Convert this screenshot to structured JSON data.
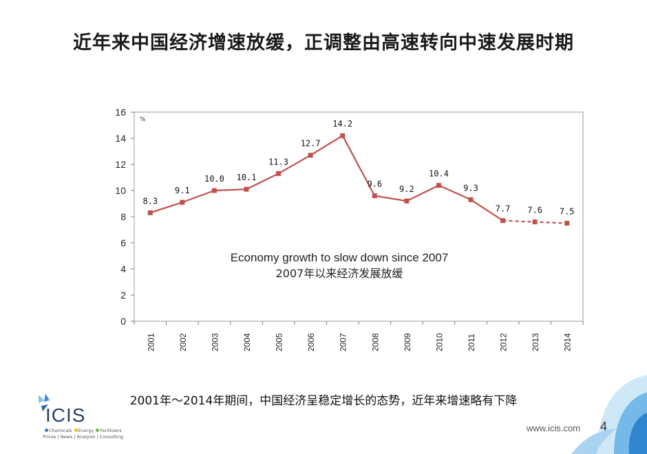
{
  "slide": {
    "title": "近年来中国经济增速放缓，正调整由高速转向中速发展时期",
    "caption": "2001年～2014年期间，中国经济呈稳定增长的态势，近年来增速略有下降",
    "website": "www.icis.com",
    "page_number": "4"
  },
  "logo": {
    "name": "ICIS",
    "tagline_line1": [
      {
        "label": "Chemicals",
        "color": "#2b7fc0"
      },
      {
        "label": "Energy",
        "color": "#f2b51c"
      },
      {
        "label": "Fertilizers",
        "color": "#6bb545"
      }
    ],
    "tagline_line2": "Prices | News | Analysis | Consulting"
  },
  "chart_data": {
    "type": "line",
    "unit_label": "%",
    "categories": [
      "2001",
      "2002",
      "2003",
      "2004",
      "2005",
      "2006",
      "2007",
      "2008",
      "2009",
      "2010",
      "2011",
      "2012",
      "2013",
      "2014"
    ],
    "values": [
      8.3,
      9.1,
      10.0,
      10.1,
      11.3,
      12.7,
      14.2,
      9.6,
      9.2,
      10.4,
      9.3,
      7.7,
      7.6,
      7.5
    ],
    "data_labels": [
      "8.3",
      "9.1",
      "10.0",
      "10.1",
      "11.3",
      "12.7",
      "14.2",
      "9.6",
      "9.2",
      "10.4",
      "9.3",
      "7.7",
      "7.6",
      "7.5"
    ],
    "dashed_from_category": "2012",
    "ylim": [
      0,
      16
    ],
    "yticks": [
      0,
      2,
      4,
      6,
      8,
      10,
      12,
      14,
      16
    ],
    "grid": false,
    "line_color": "#c0504d",
    "annotation_en": "Economy growth to slow down since 2007",
    "annotation_zh": "2007年以来经济发展放缓"
  },
  "colors": {
    "accent_blue": "#3b8fd4",
    "accent_light": "#a9d3f0"
  }
}
